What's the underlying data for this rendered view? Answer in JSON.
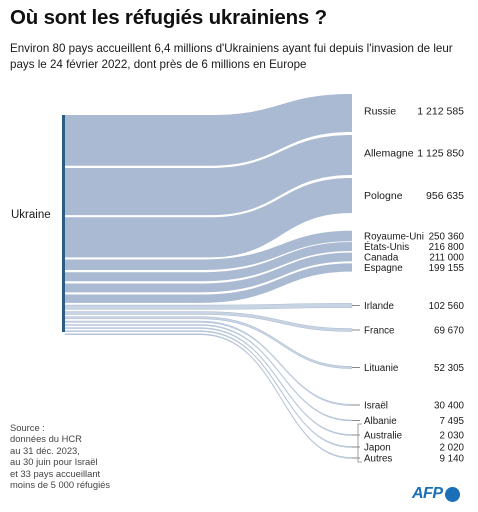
{
  "title": "Où sont les réfugiés ukrainiens ?",
  "subtitle": "Environ 80 pays accueillent 6,4 millions d'Ukrainiens ayant fui depuis l'invasion de leur pays le 24 février 2022, dont près de 6 millions en Europe",
  "source": "Source :\ndonnées du HCR\nau 31 déc. 2023,\nau 30 juin pour Israël\net 33 pays accueillant\nmoins de 5 000 réfugiés",
  "logo": "AFP",
  "colors": {
    "flow": "#a9bad2",
    "flow_light": "#c9d4e3",
    "origin_bar": "#2c5d84",
    "tick": "#8a8a8a"
  },
  "chart_data": {
    "type": "sankey",
    "source_node": "Ukraine",
    "flows": [
      {
        "name": "Russie",
        "value": "1 212 585",
        "num": 1212585
      },
      {
        "name": "Allemagne",
        "value": "1 125 850",
        "num": 1125850
      },
      {
        "name": "Pologne",
        "value": "956 635",
        "num": 956635
      },
      {
        "name": "Royaume-Uni",
        "value": "250 360",
        "num": 250360
      },
      {
        "name": "États-Unis",
        "value": "216 800",
        "num": 216800
      },
      {
        "name": "Canada",
        "value": "211 000",
        "num": 211000
      },
      {
        "name": "Espagne",
        "value": "199 155",
        "num": 199155
      },
      {
        "name": "Irlande",
        "value": "102 560",
        "num": 102560
      },
      {
        "name": "France",
        "value": "69 670",
        "num": 69670
      },
      {
        "name": "Lituanie",
        "value": "52 305",
        "num": 52305
      },
      {
        "name": "Israël",
        "value": "30 400",
        "num": 30400
      },
      {
        "name": "Albanie",
        "value": "7 495",
        "num": 7495
      },
      {
        "name": "Australie",
        "value": "2 030",
        "num": 2030
      },
      {
        "name": "Japon",
        "value": "2 020",
        "num": 2020
      },
      {
        "name": "Autres",
        "value": "9 140",
        "num": 9140
      }
    ]
  }
}
